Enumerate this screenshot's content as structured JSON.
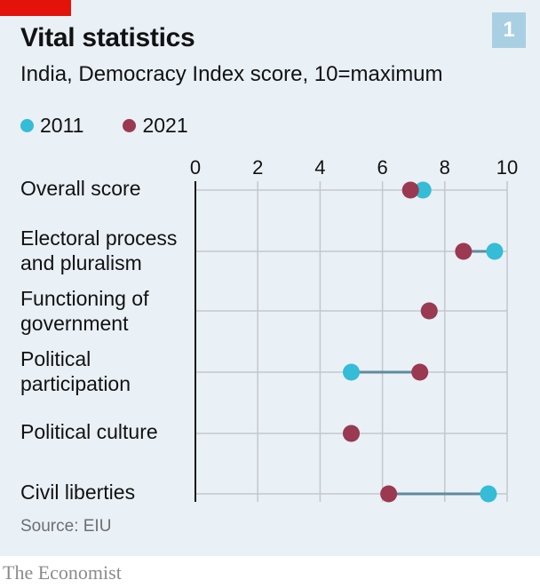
{
  "header": {
    "title": "Vital statistics",
    "subtitle": "India, Democracy Index score, 10=maximum",
    "chart_number": "1"
  },
  "footer": {
    "source": "Source: EIU",
    "brand": "The Economist"
  },
  "colors": {
    "series_2011": "#35bcd6",
    "series_2021": "#9b3950",
    "connector": "#5f8b9d",
    "grid": "#c3c8cd",
    "accent_red": "#e3120b"
  },
  "chart_data": {
    "type": "dumbbell",
    "title": "Vital statistics",
    "subtitle": "India, Democracy Index score, 10=maximum",
    "xlim": [
      0,
      10
    ],
    "x_ticks": [
      "0",
      "2",
      "4",
      "6",
      "8",
      "10"
    ],
    "x_tick_values": [
      0,
      2,
      4,
      6,
      8,
      10
    ],
    "grid": true,
    "legend_position": "top-left",
    "series": [
      {
        "name": "2011",
        "color": "#35bcd6"
      },
      {
        "name": "2021",
        "color": "#9b3950"
      }
    ],
    "categories": [
      {
        "label_lines": [
          "Overall score"
        ],
        "v2011": 7.3,
        "v2021": 6.9
      },
      {
        "label_lines": [
          "Electoral process",
          "and pluralism"
        ],
        "v2011": 9.6,
        "v2021": 8.6
      },
      {
        "label_lines": [
          "Functioning of",
          "government"
        ],
        "v2011": 7.5,
        "v2021": 7.5
      },
      {
        "label_lines": [
          "Political",
          "participation"
        ],
        "v2011": 5.0,
        "v2021": 7.2
      },
      {
        "label_lines": [
          "Political culture"
        ],
        "v2011": 5.0,
        "v2021": 5.0
      },
      {
        "label_lines": [
          "Civil liberties"
        ],
        "v2011": 9.4,
        "v2021": 6.2
      }
    ]
  }
}
